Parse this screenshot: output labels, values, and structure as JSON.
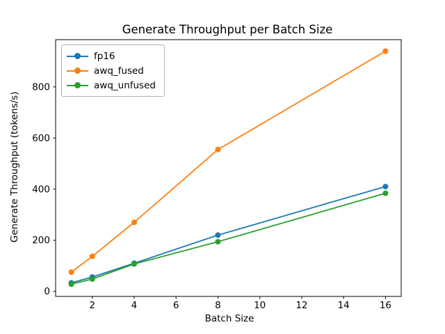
{
  "chart_data": {
    "type": "line",
    "title": "Generate Throughput per Batch Size",
    "xlabel": "Batch Size",
    "ylabel": "Generate Throughput (tokens/s)",
    "x": [
      1,
      2,
      4,
      8,
      16
    ],
    "series": [
      {
        "name": "fp16",
        "color": "#1f77b4",
        "values": [
          33,
          56,
          110,
          220,
          410
        ]
      },
      {
        "name": "awq_fused",
        "color": "#ff7f0e",
        "values": [
          75,
          137,
          270,
          555,
          940
        ]
      },
      {
        "name": "awq_unfused",
        "color": "#2ca02c",
        "values": [
          28,
          48,
          107,
          194,
          384
        ]
      }
    ],
    "xlim": [
      0.25,
      16.75
    ],
    "ylim": [
      -20,
      985
    ],
    "xticks": [
      2,
      4,
      6,
      8,
      10,
      12,
      14,
      16
    ],
    "yticks": [
      0,
      200,
      400,
      600,
      800
    ],
    "grid": false,
    "legend_position": "upper left",
    "marker": "o",
    "line_width": 1.8,
    "marker_radius": 4,
    "spine_color": "#000000",
    "text_color": "#000000",
    "background_color": "#ffffff"
  }
}
